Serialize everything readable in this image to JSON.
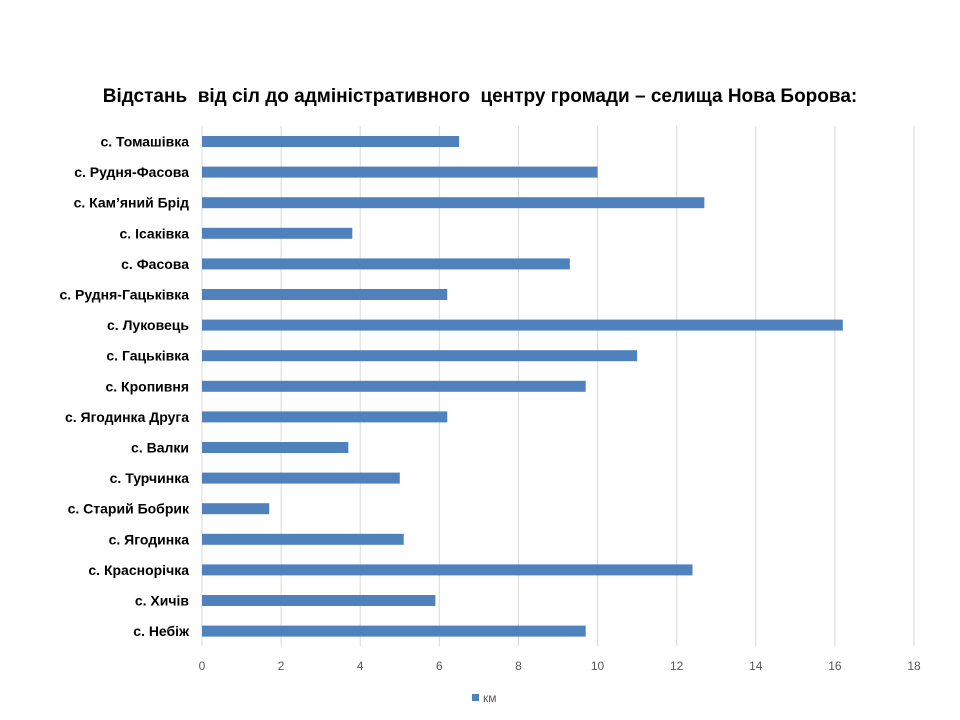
{
  "chart_data": {
    "type": "bar",
    "orientation": "horizontal",
    "title": "Відстань  від сіл до адміністративного  центру громади – селища Нова Борова:",
    "categories": [
      "с. Томашівка",
      "с. Рудня-Фасова",
      "с. Кам’яний Брід",
      "с. Ісаківка",
      "с. Фасова",
      "с. Рудня-Гацьківка",
      "с. Луковець",
      "с. Гацьківка",
      "с. Кропивня",
      "с. Ягодинка Друга",
      "с. Валки",
      "с. Турчинка",
      "с. Старий Бобрик",
      "с. Ягодинка",
      "с. Краснорічка",
      "с. Хичів",
      "с. Небіж"
    ],
    "series": [
      {
        "name": "км",
        "color": "#4f81bd",
        "values": [
          6.5,
          10,
          12.7,
          3.8,
          9.3,
          6.2,
          16.2,
          11,
          9.7,
          6.2,
          3.7,
          5,
          1.7,
          5.1,
          12.4,
          5.9,
          9.7
        ]
      }
    ],
    "x_ticks": [
      "0",
      "2",
      "4",
      "6",
      "8",
      "10",
      "12",
      "14",
      "16",
      "18"
    ],
    "xlim": [
      0,
      18
    ],
    "grid": "vertical",
    "legend_position": "bottom"
  }
}
